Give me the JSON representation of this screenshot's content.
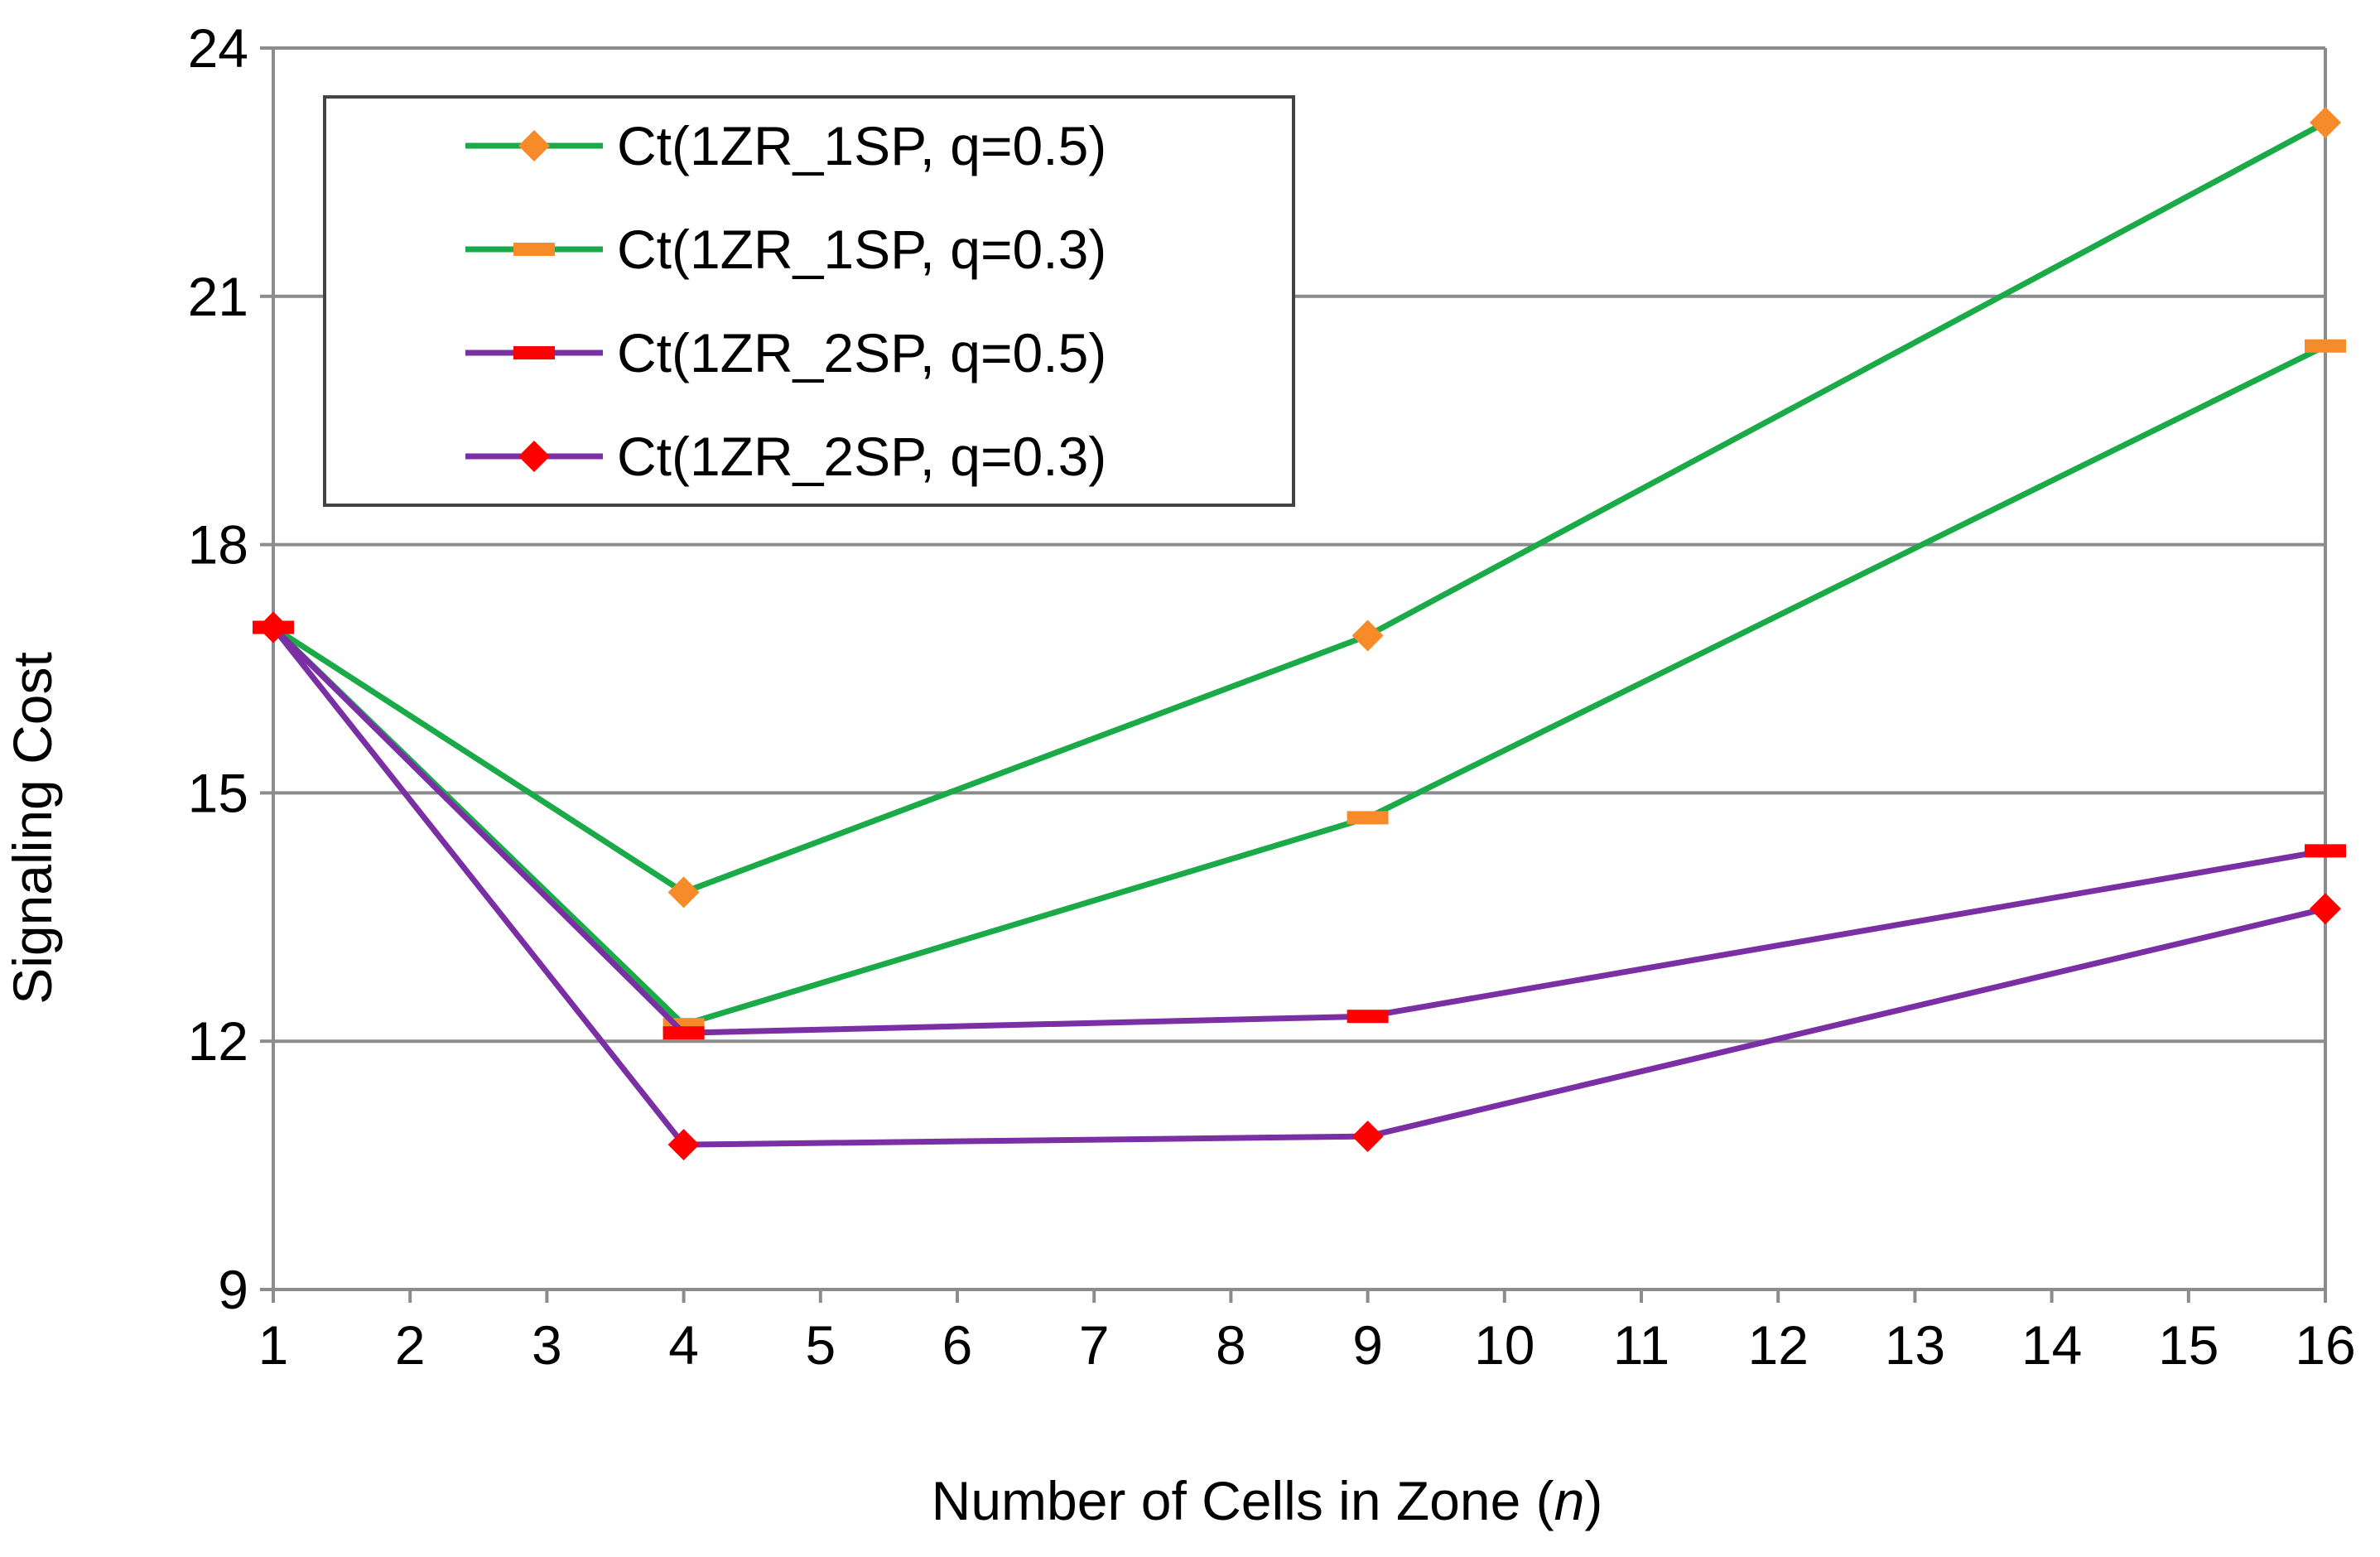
{
  "chart_data": {
    "type": "line",
    "title": "",
    "xlabel_main": "Number of Cells in Zone (",
    "xlabel_var": "n",
    "xlabel_end": ")",
    "ylabel": "Signaling Cost",
    "x_ticks": [
      1,
      2,
      3,
      4,
      5,
      6,
      7,
      8,
      9,
      10,
      11,
      12,
      13,
      14,
      15,
      16
    ],
    "y_ticks": [
      9,
      12,
      15,
      18,
      21,
      24
    ],
    "xlim": [
      1,
      16
    ],
    "ylim": [
      9,
      24
    ],
    "grid": "horizontal",
    "legend_position": "top-left",
    "series": [
      {
        "name": "Ct(1ZR_1SP, q=0.5)",
        "line_color": "#1aaa47",
        "marker": "diamond",
        "marker_color": "#f78b2a",
        "x": [
          1,
          4,
          9,
          16
        ],
        "y": [
          17.0,
          13.8,
          16.9,
          23.1
        ]
      },
      {
        "name": "Ct(1ZR_1SP, q=0.3)",
        "line_color": "#1aaa47",
        "marker": "dash",
        "marker_color": "#f78b2a",
        "x": [
          1,
          4,
          9,
          16
        ],
        "y": [
          17.0,
          12.2,
          14.7,
          20.4
        ]
      },
      {
        "name": "Ct(1ZR_2SP, q=0.5)",
        "line_color": "#7b2fa5",
        "marker": "dash",
        "marker_color": "#ff0000",
        "x": [
          1,
          4,
          9,
          16
        ],
        "y": [
          17.0,
          12.1,
          12.3,
          14.3
        ]
      },
      {
        "name": "Ct(1ZR_2SP, q=0.3)",
        "line_color": "#7b2fa5",
        "marker": "diamond",
        "marker_color": "#ff0000",
        "x": [
          1,
          4,
          9,
          16
        ],
        "y": [
          17.0,
          10.75,
          10.85,
          13.6
        ]
      }
    ]
  }
}
